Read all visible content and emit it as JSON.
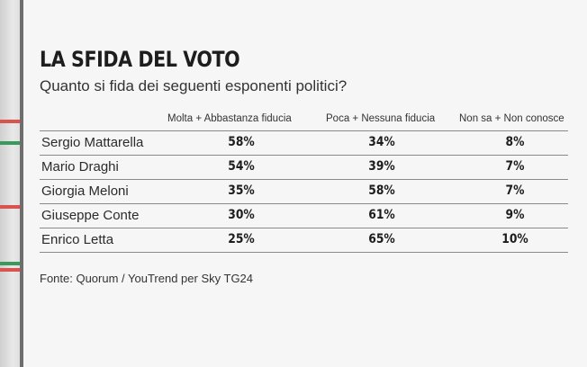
{
  "colors": {
    "flag_red": "#d9534f",
    "flag_green": "#3a9a5b",
    "text": "#2b2b2b"
  },
  "chart_data": {
    "type": "table",
    "title": "LA SFIDA DEL VOTO",
    "subtitle": "Quanto si fida dei seguenti esponenti politici?",
    "columns": [
      "Molta + Abbastanza fiducia",
      "Poca + Nessuna fiducia",
      "Non sa + Non conosce"
    ],
    "rows": [
      {
        "name": "Sergio Mattarella",
        "values": [
          "58%",
          "34%",
          "8%"
        ]
      },
      {
        "name": "Mario Draghi",
        "values": [
          "54%",
          "39%",
          "7%"
        ]
      },
      {
        "name": "Giorgia Meloni",
        "values": [
          "35%",
          "58%",
          "7%"
        ]
      },
      {
        "name": "Giuseppe Conte",
        "values": [
          "30%",
          "61%",
          "9%"
        ]
      },
      {
        "name": "Enrico Letta",
        "values": [
          "25%",
          "65%",
          "10%"
        ]
      }
    ],
    "source": "Fonte: Quorum / YouTrend per Sky TG24"
  }
}
